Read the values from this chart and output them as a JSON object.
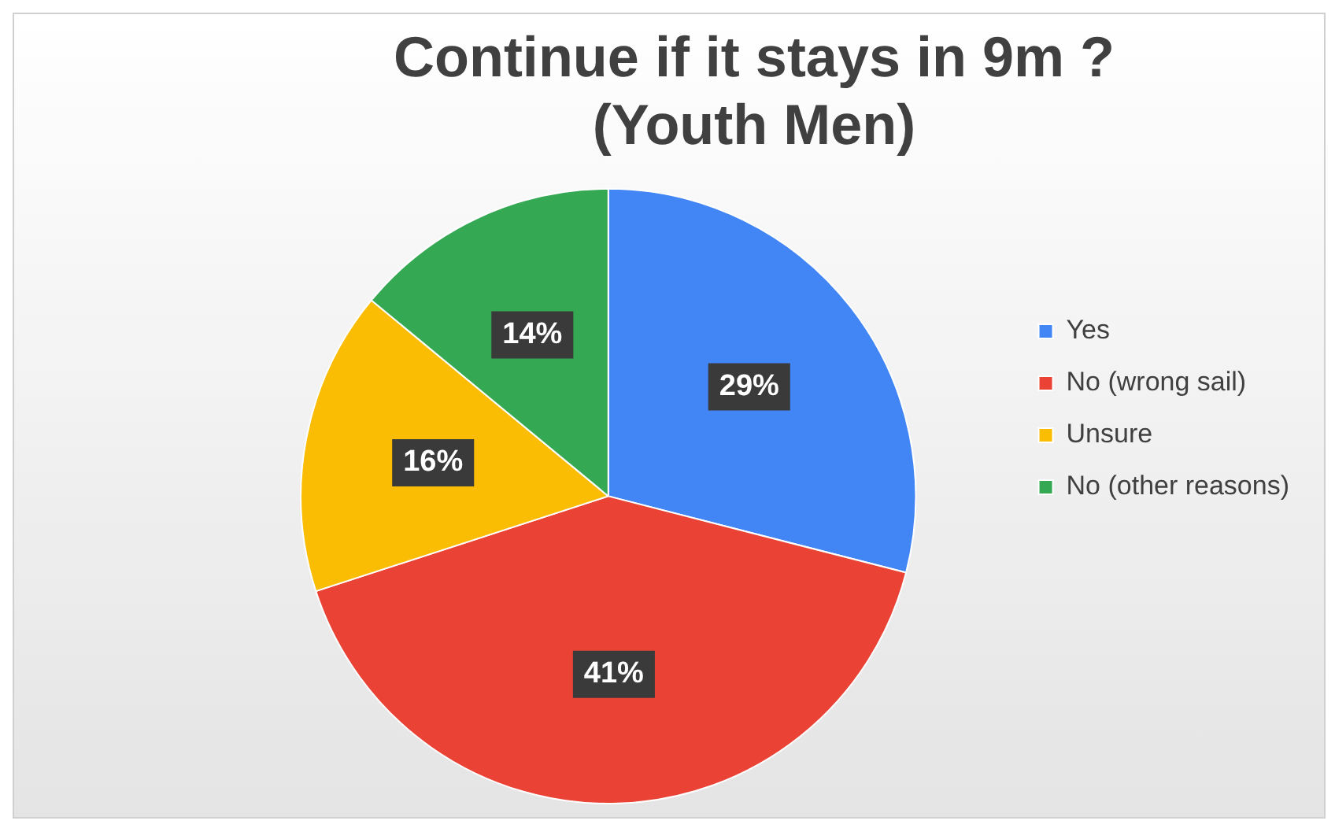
{
  "chart_data": {
    "type": "pie",
    "title": "Continue if it stays in 9m ?\n(Youth Men)",
    "categories": [
      "Yes",
      "No (wrong sail)",
      "Unsure",
      "No (other reasons)"
    ],
    "values": [
      29,
      41,
      16,
      14
    ],
    "colors": [
      "#4285f4",
      "#ea4335",
      "#fbbc04",
      "#34a853"
    ],
    "value_labels": [
      "29%",
      "41%",
      "16%",
      "14%"
    ],
    "legend": "right"
  }
}
